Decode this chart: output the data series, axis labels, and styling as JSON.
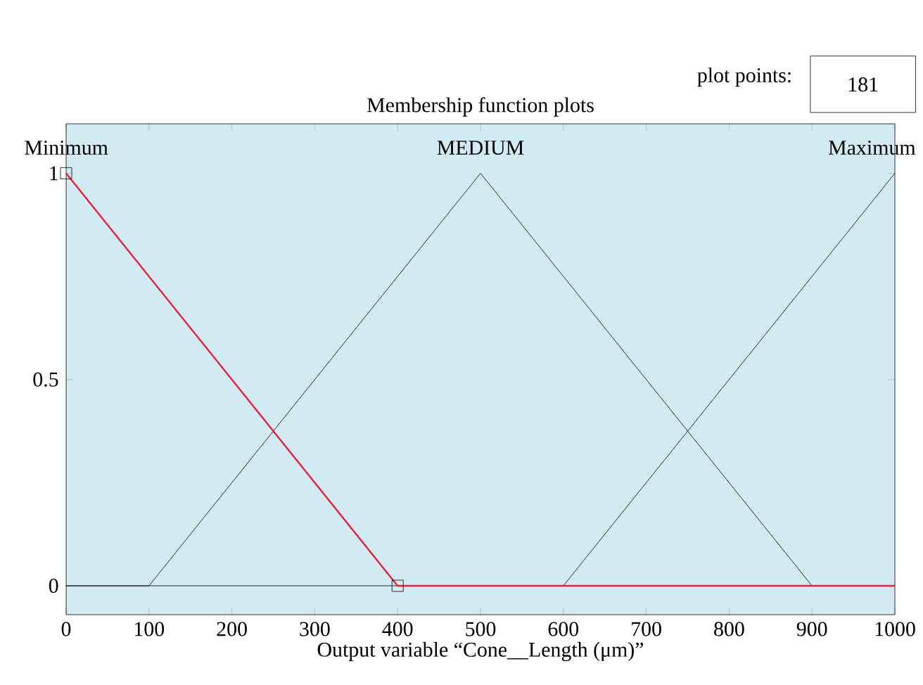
{
  "chart_data": {
    "type": "line",
    "title": "Membership function plots",
    "xlabel": "Output variable “Cone__Length (μm)”",
    "xlim": [
      0,
      1000
    ],
    "ylim": [
      -0.07,
      1.12
    ],
    "xticks": [
      0,
      100,
      200,
      300,
      400,
      500,
      600,
      700,
      800,
      900,
      1000
    ],
    "yticks": [
      0,
      0.5,
      1
    ],
    "series": [
      {
        "name": "MEDIUM",
        "color": "#000000",
        "x": [
          0,
          100,
          500,
          900,
          1000
        ],
        "values": [
          0,
          0,
          1,
          0,
          0
        ]
      },
      {
        "name": "Maximum",
        "color": "#000000",
        "x": [
          0,
          600,
          1000
        ],
        "values": [
          0,
          0,
          1
        ]
      },
      {
        "name": "Minimum",
        "color": "#e8203a",
        "x": [
          0,
          400,
          1000
        ],
        "values": [
          1,
          0,
          0
        ]
      },
      {
        "type": "scatter",
        "marker": "square",
        "color": "#000000",
        "x": [
          0,
          400
        ],
        "values": [
          1,
          0
        ]
      }
    ],
    "annotations": [
      "plot points:",
      "181"
    ]
  }
}
